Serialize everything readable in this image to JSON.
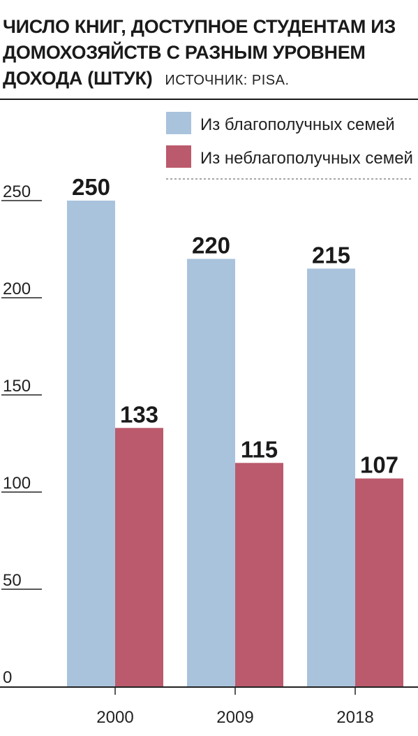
{
  "header": {
    "title": "ЧИСЛО КНИГ, ДОСТУПНОЕ СТУДЕНТАМ ИЗ ДОМОХОЗЯЙСТВ С РАЗНЫМ УРОВНЕМ ДОХОДА (ШТУК)",
    "source": "ИСТОЧНИК: PISA."
  },
  "colors": {
    "series_well_off": "#a9c3dd",
    "series_disadvantaged": "#bb5a6c",
    "axis": "#222222"
  },
  "chart_data": {
    "type": "bar",
    "title": "ЧИСЛО КНИГ, ДОСТУПНОЕ СТУДЕНТАМ ИЗ ДОМОХОЗЯЙСТВ С РАЗНЫМ УРОВНЕМ ДОХОДА (ШТУК)",
    "xlabel": "",
    "ylabel": "",
    "categories": [
      "2000",
      "2009",
      "2018"
    ],
    "series": [
      {
        "name": "Из благополучных семей",
        "values": [
          250,
          220,
          215
        ],
        "color": "#a9c3dd"
      },
      {
        "name": "Из неблагополучных семей",
        "values": [
          133,
          115,
          107
        ],
        "color": "#bb5a6c"
      }
    ],
    "ylim": [
      0,
      250
    ],
    "yticks": [
      0,
      50,
      100,
      150,
      200,
      250
    ],
    "data_labels": true,
    "grid": false,
    "legend_position": "top-right"
  }
}
